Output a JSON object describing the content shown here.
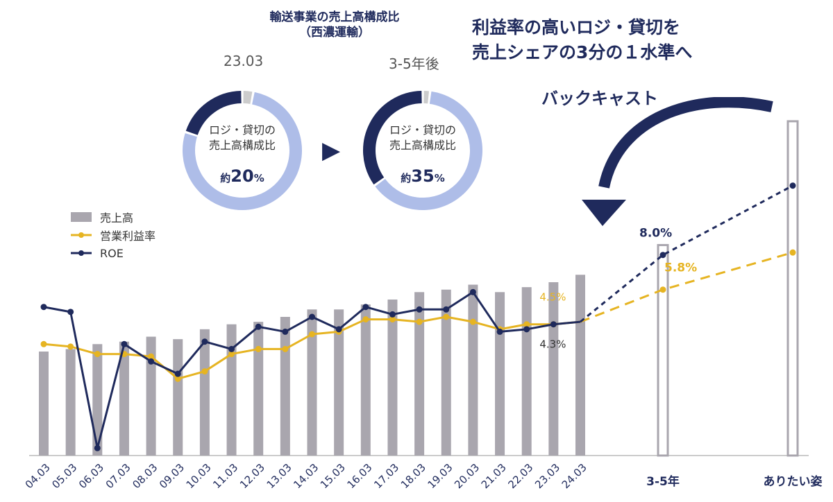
{
  "donut_section": {
    "title_line1": "輸送事業の売上高構成比",
    "title_line2": "（西濃運輸）",
    "left": {
      "period": "23.03",
      "label_line1": "ロジ・貸切の",
      "label_line2": "売上高構成比",
      "pct_prefix": "約",
      "pct_value": "20",
      "pct_unit": "%"
    },
    "arrow": "▶",
    "right": {
      "period": "3-5年後",
      "label_line1": "ロジ・貸切の",
      "label_line2": "売上高構成比",
      "pct_prefix": "約",
      "pct_value": "35",
      "pct_unit": "%"
    }
  },
  "headline": {
    "line1": "利益率の高いロジ・貸切を",
    "line2": "売上シェアの3分の１水準へ"
  },
  "backcast_label": "バックキャスト",
  "colors": {
    "navy": "#1f2a5c",
    "gold": "#e6b422",
    "bar": "#a9a6ae",
    "light_blue": "#aebde8",
    "gray": "#cccccc"
  },
  "legend": [
    {
      "label": "売上高",
      "type": "bar",
      "color": "#a9a6ae"
    },
    {
      "label": "営業利益率",
      "type": "line",
      "color": "#e6b422"
    },
    {
      "label": "ROE",
      "type": "line",
      "color": "#1f2a5c"
    }
  ],
  "chart_data": [
    {
      "type": "pie",
      "title": "23.03",
      "slices": [
        {
          "label": "ロジ・貸切",
          "value": 20,
          "color": "#1f2a5c"
        },
        {
          "label": "",
          "value": 77,
          "color": "#aebde8"
        },
        {
          "label": "",
          "value": 3,
          "color": "#cccccc"
        }
      ]
    },
    {
      "type": "pie",
      "title": "3-5年後",
      "slices": [
        {
          "label": "ロジ・貸切",
          "value": 35,
          "color": "#1f2a5c"
        },
        {
          "label": "",
          "value": 63,
          "color": "#aebde8"
        },
        {
          "label": "",
          "value": 2,
          "color": "#cccccc"
        }
      ]
    },
    {
      "type": "bar",
      "categories": [
        "04.03",
        "05.03",
        "06.03",
        "07.03",
        "08.03",
        "09.03",
        "10.03",
        "11.03",
        "12.03",
        "13.03",
        "14.03",
        "15.03",
        "16.03",
        "17.03",
        "18.03",
        "19.03",
        "20.03",
        "21.03",
        "22.03",
        "23.03",
        "24.03",
        "3-5年",
        "ありたい姿"
      ],
      "series": [
        {
          "name": "売上高",
          "kind": "bar",
          "values": [
            42,
            43,
            45,
            46,
            48,
            47,
            51,
            53,
            54,
            56,
            59,
            59,
            61,
            63,
            66,
            67,
            69,
            66,
            68,
            70,
            73,
            null,
            null
          ],
          "outline_values": [
            null,
            null,
            null,
            null,
            null,
            null,
            null,
            null,
            null,
            null,
            null,
            null,
            null,
            null,
            null,
            null,
            null,
            null,
            null,
            null,
            null,
            85,
            135
          ]
        },
        {
          "name": "営業利益率",
          "kind": "line",
          "values": [
            45,
            44,
            41,
            41,
            40,
            31,
            34,
            41,
            43,
            43,
            49,
            50,
            55,
            55,
            54,
            56,
            54,
            51,
            53,
            53,
            54,
            67,
            82
          ],
          "projected_from_index": 20
        },
        {
          "name": "ROE",
          "kind": "line",
          "values": [
            60,
            58,
            3,
            45,
            38,
            33,
            46,
            43,
            52,
            50,
            56,
            51,
            60,
            57,
            59,
            59,
            66,
            50,
            51,
            53,
            54,
            81,
            109
          ],
          "projected_from_index": 20
        }
      ],
      "annotations": [
        {
          "text": "4.5%",
          "series": "営業利益率",
          "category": "23.03"
        },
        {
          "text": "4.3%",
          "series": "ROE",
          "category": "23.03"
        },
        {
          "text": "8.0%",
          "series": "ROE",
          "category": "3-5年"
        },
        {
          "text": "5.8%",
          "series": "営業利益率",
          "category": "3-5年"
        }
      ],
      "ylim": [
        0,
        140
      ]
    }
  ]
}
